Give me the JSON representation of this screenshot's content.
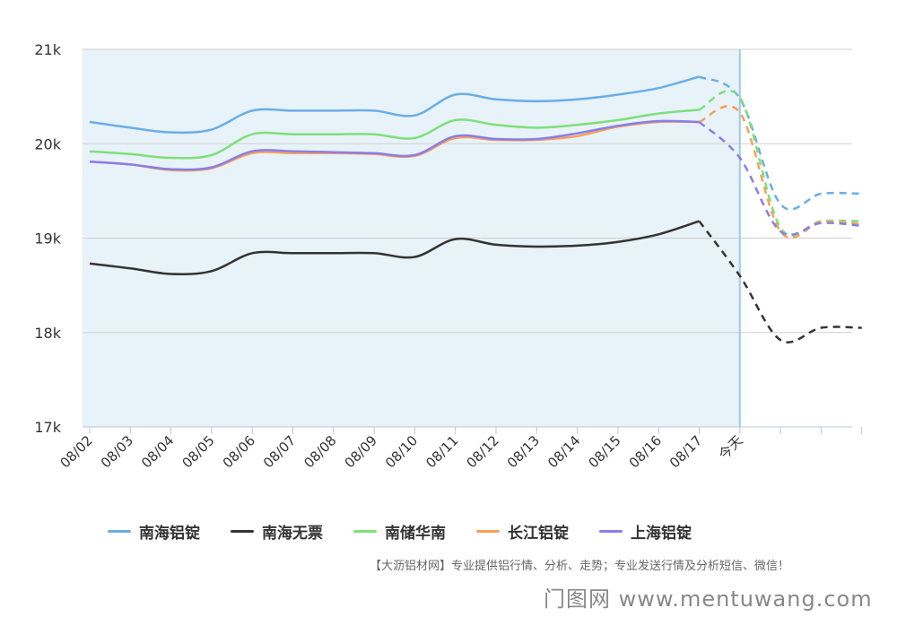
{
  "chart_data": {
    "type": "line",
    "categories": [
      "08/02",
      "08/03",
      "08/04",
      "08/05",
      "08/06",
      "08/07",
      "08/08",
      "08/09",
      "08/10",
      "08/11",
      "08/12",
      "08/13",
      "08/14",
      "08/15",
      "08/16",
      "08/17",
      "今天",
      "",
      "",
      ""
    ],
    "ylim": [
      17000,
      21000
    ],
    "yticks": [
      17000,
      18000,
      19000,
      20000,
      21000
    ],
    "ytick_labels": [
      "17k",
      "18k",
      "19k",
      "20k",
      "21k"
    ],
    "history_end_index": 15,
    "today_index": 16,
    "grid": true,
    "legend_position": "bottom",
    "series": [
      {
        "name": "南海铝锭",
        "color": "#6aaee8",
        "values": [
          20230,
          20170,
          20120,
          20150,
          20350,
          20350,
          20350,
          20350,
          20300,
          20520,
          20470,
          20450,
          20470,
          20520,
          20590,
          20710,
          20480,
          19360,
          19470,
          19470
        ]
      },
      {
        "name": "南海无票",
        "color": "#333333",
        "values": [
          18730,
          18680,
          18620,
          18650,
          18840,
          18840,
          18840,
          18840,
          18800,
          18990,
          18930,
          18910,
          18920,
          18960,
          19040,
          19180,
          18600,
          17920,
          18050,
          18050
        ]
      },
      {
        "name": "南储华南",
        "color": "#7de07a",
        "values": [
          19920,
          19890,
          19850,
          19880,
          20100,
          20100,
          20100,
          20100,
          20060,
          20250,
          20200,
          20170,
          20200,
          20250,
          20320,
          20360,
          20490,
          19110,
          19180,
          19180
        ]
      },
      {
        "name": "长江铝锭",
        "color": "#f5a25a",
        "values": [
          19810,
          19780,
          19720,
          19740,
          19900,
          19900,
          19900,
          19890,
          19870,
          20060,
          20040,
          20040,
          20080,
          20180,
          20230,
          20230,
          20330,
          19070,
          19170,
          19150
        ]
      },
      {
        "name": "上海铝锭",
        "color": "#8a7de8",
        "values": [
          19810,
          19780,
          19730,
          19750,
          19920,
          19920,
          19910,
          19900,
          19880,
          20080,
          20050,
          20050,
          20110,
          20190,
          20240,
          20230,
          19850,
          19070,
          19160,
          19130
        ]
      }
    ]
  },
  "footnote": "【大沥铝材网】专业提供铝行情、分析、走势；专业发送行情及分析短信、微信！",
  "watermark": "门图网 www.mentuwang.com"
}
